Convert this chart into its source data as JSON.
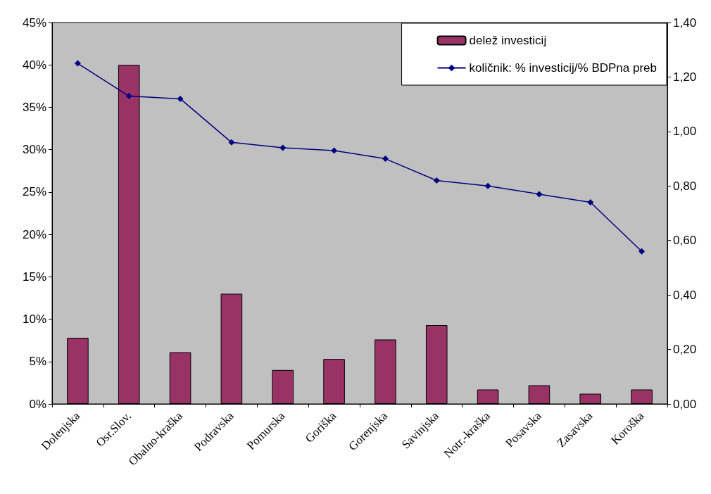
{
  "chart_data": {
    "type": "bar",
    "categories": [
      "Dolenjska",
      "Osr.Slov.",
      "Obalno-kraška",
      "Podravska",
      "Pomurska",
      "Goriška",
      "Gorenjska",
      "Savinjska",
      "Notr.-kraška",
      "Posavska",
      "Zasavska",
      "Koroška"
    ],
    "series": [
      {
        "name": "delež investicij",
        "color": "#993366",
        "values": [
          7.8,
          40.0,
          6.1,
          13.0,
          4.0,
          5.3,
          7.6,
          9.3,
          1.7,
          2.2,
          1.2,
          1.7
        ]
      },
      {
        "name": "količnik: % investicij/% BDPna preb",
        "type": "line",
        "axis": "y2",
        "color": "#000080",
        "values": [
          1.25,
          1.13,
          1.12,
          0.96,
          0.94,
          0.93,
          0.9,
          0.82,
          0.8,
          0.77,
          0.74,
          0.56
        ]
      }
    ],
    "ylim": [
      0,
      45
    ],
    "yticks": [
      {
        "value": 0,
        "label": "0%"
      },
      {
        "value": 5,
        "label": "5%"
      },
      {
        "value": 10,
        "label": "10%"
      },
      {
        "value": 15,
        "label": "15%"
      },
      {
        "value": 20,
        "label": "20%"
      },
      {
        "value": 25,
        "label": "25%"
      },
      {
        "value": 30,
        "label": "30%"
      },
      {
        "value": 35,
        "label": "35%"
      },
      {
        "value": 40,
        "label": "40%"
      },
      {
        "value": 45,
        "label": "45%"
      }
    ],
    "y2lim": [
      0,
      1.4
    ],
    "y2ticks": [
      {
        "value": 0,
        "label": "0,00"
      },
      {
        "value": 0.2,
        "label": "0,20"
      },
      {
        "value": 0.4,
        "label": "0,40"
      },
      {
        "value": 0.6,
        "label": "0,60"
      },
      {
        "value": 0.8,
        "label": "0,80"
      },
      {
        "value": 1.0,
        "label": "1,00"
      },
      {
        "value": 1.2,
        "label": "1,20"
      },
      {
        "value": 1.4,
        "label": "1,40"
      }
    ],
    "grid": false,
    "legend": "top right",
    "marker": "diamond",
    "line_style": "solid"
  }
}
